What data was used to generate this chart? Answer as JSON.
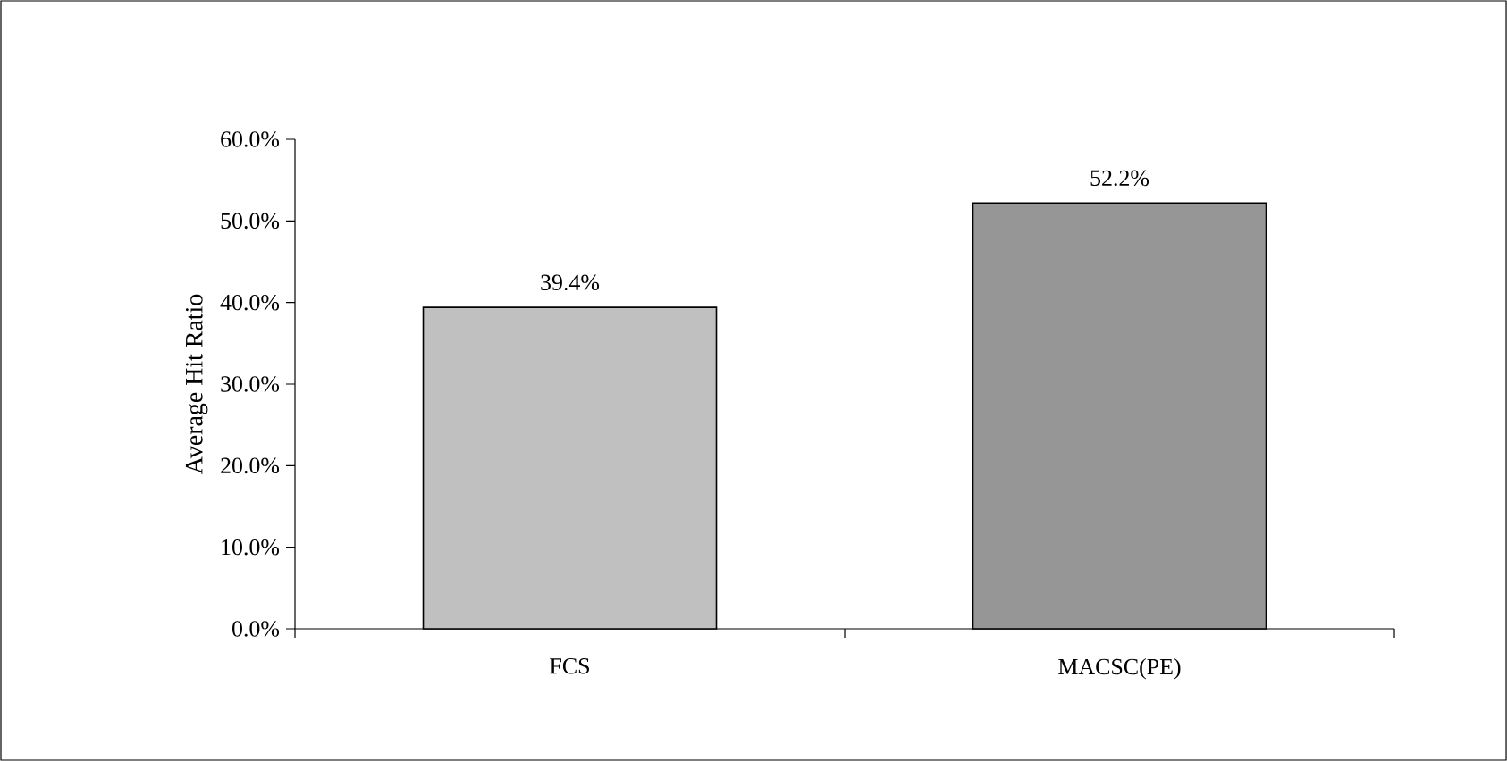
{
  "chart_data": {
    "type": "bar",
    "ylabel": "Average Hit Ratio",
    "categories": [
      "FCS",
      "MACSC(PE)"
    ],
    "values": [
      39.4,
      52.2
    ],
    "colors": [
      "#c0c0c0",
      "#969696"
    ],
    "value_labels": [
      "39.4%",
      "52.2%"
    ],
    "ylim": [
      0,
      60
    ],
    "yticks": [
      {
        "value": 0,
        "label": "0.0%"
      },
      {
        "value": 10,
        "label": "10.0%"
      },
      {
        "value": 20,
        "label": "20.0%"
      },
      {
        "value": 30,
        "label": "30.0%"
      },
      {
        "value": 40,
        "label": "40.0%"
      },
      {
        "value": 50,
        "label": "50.0%"
      },
      {
        "value": 60,
        "label": "60.0%"
      }
    ]
  }
}
